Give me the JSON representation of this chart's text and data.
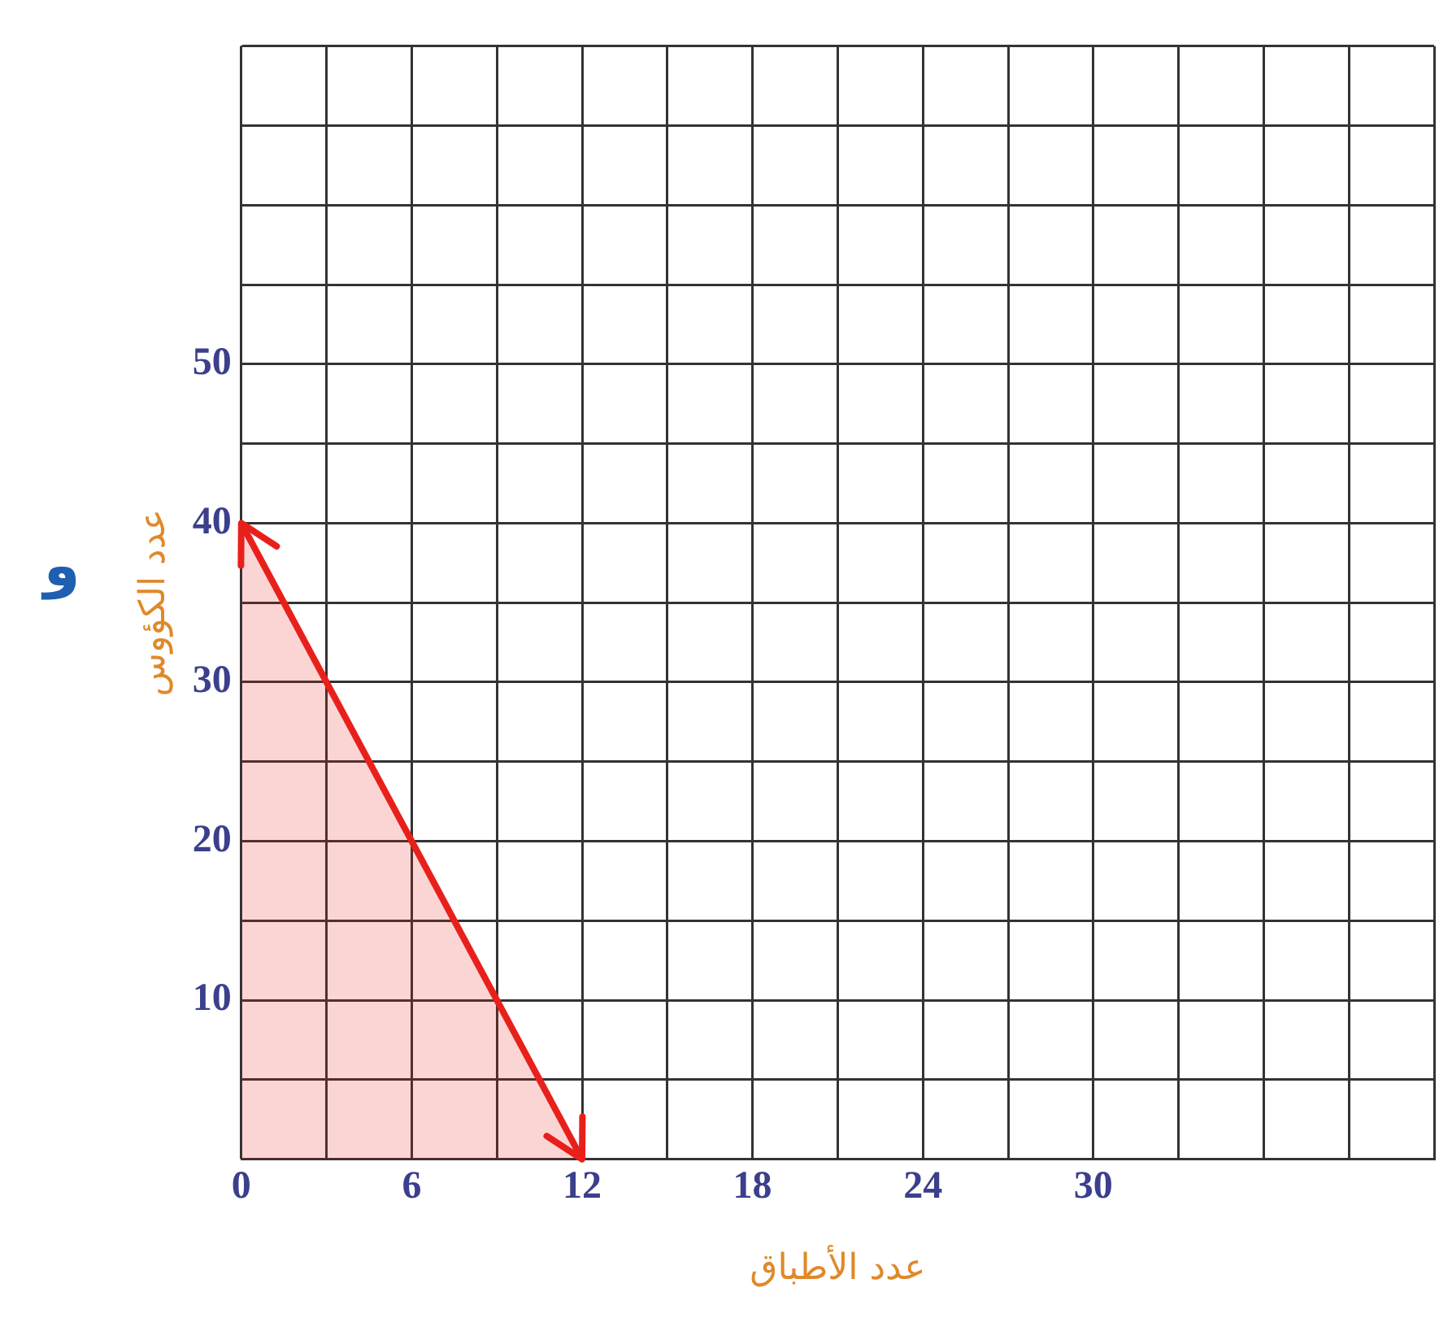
{
  "chart_data": {
    "type": "line",
    "xlabel": "عدد الأطباق",
    "ylabel": "عدد الكؤوس",
    "annotations": [
      "و"
    ],
    "series": [
      {
        "type": "area",
        "color": "#e8201c",
        "x": [
          0,
          12
        ],
        "values": [
          40,
          0
        ]
      }
    ],
    "xlim": [
      0,
      42
    ],
    "ylim": [
      0,
      70
    ],
    "xticks": [
      0,
      {
        "value": 3,
        "label": null
      },
      6,
      {
        "value": 9,
        "label": null
      },
      12,
      {
        "value": 15,
        "label": null
      },
      18,
      {
        "value": 21,
        "label": null
      },
      24,
      {
        "value": 27,
        "label": null
      },
      30,
      {
        "value": 33,
        "label": null
      },
      {
        "value": 36,
        "label": null
      },
      {
        "value": 39,
        "label": null
      },
      {
        "value": 42,
        "label": null
      }
    ],
    "yticks": [
      {
        "value": 0,
        "label": null
      },
      {
        "value": 5,
        "label": null
      },
      10,
      {
        "value": 15,
        "label": null
      },
      20,
      {
        "value": 25,
        "label": null
      },
      30,
      {
        "value": 35,
        "label": null
      },
      40,
      {
        "value": 45,
        "label": null
      },
      50,
      {
        "value": 55,
        "label": null
      },
      {
        "value": 60,
        "label": null
      },
      {
        "value": 65,
        "label": null
      },
      {
        "value": 70,
        "label": null
      }
    ],
    "grid": true,
    "legend": false,
    "marker": "none"
  }
}
